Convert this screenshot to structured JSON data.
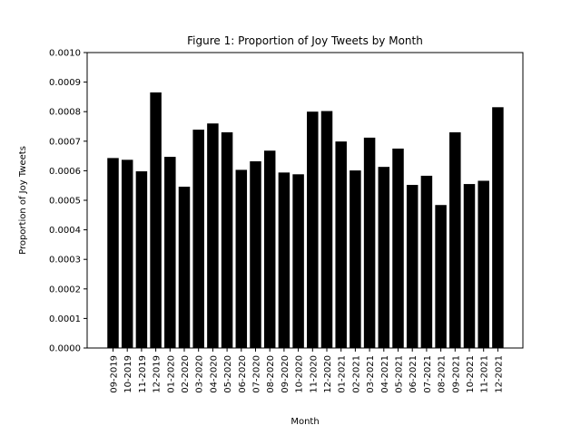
{
  "chart_data": {
    "type": "bar",
    "title": "Figure 1: Proportion of Joy Tweets by Month",
    "xlabel": "Month",
    "ylabel": "Proportion of Joy Tweets",
    "categories": [
      "09-2019",
      "10-2019",
      "11-2019",
      "12-2019",
      "01-2020",
      "02-2020",
      "03-2020",
      "04-2020",
      "05-2020",
      "06-2020",
      "07-2020",
      "08-2020",
      "09-2020",
      "10-2020",
      "11-2020",
      "12-2020",
      "01-2021",
      "02-2021",
      "03-2021",
      "04-2021",
      "05-2021",
      "06-2021",
      "07-2021",
      "08-2021",
      "09-2021",
      "10-2021",
      "11-2021",
      "12-2021"
    ],
    "values": [
      0.000643,
      0.000637,
      0.000598,
      0.000865,
      0.000647,
      0.000546,
      0.000739,
      0.00076,
      0.00073,
      0.000603,
      0.000632,
      0.000668,
      0.000594,
      0.000588,
      0.0008,
      0.000802,
      0.000699,
      0.000601,
      0.000712,
      0.000613,
      0.000675,
      0.000552,
      0.000583,
      0.000484,
      0.00073,
      0.000555,
      0.000566,
      0.000815
    ],
    "ylim": [
      0,
      0.001
    ],
    "yticks": [
      "0.0000",
      "0.0001",
      "0.0002",
      "0.0003",
      "0.0004",
      "0.0005",
      "0.0006",
      "0.0007",
      "0.0008",
      "0.0009",
      "0.0010"
    ],
    "bar_color": "#000000",
    "grid": false
  }
}
